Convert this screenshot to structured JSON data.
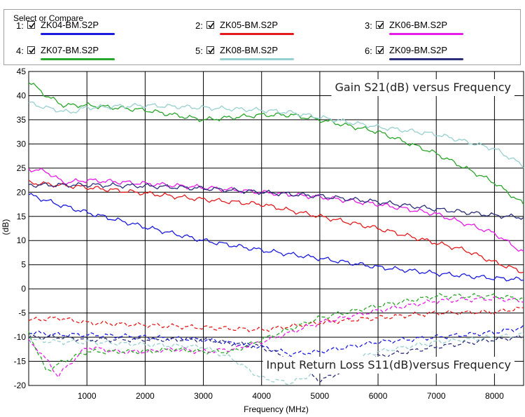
{
  "selector": {
    "legend": "Select or Compare",
    "items": [
      {
        "index": "1:",
        "checked": true,
        "name": "ZK04-BM.S2P",
        "color": "#1b1bdc"
      },
      {
        "index": "2:",
        "checked": true,
        "name": "ZK05-BM.S2P",
        "color": "#e31a1c"
      },
      {
        "index": "3:",
        "checked": true,
        "name": "ZK06-BM.S2P",
        "color": "#e61be6"
      },
      {
        "index": "4:",
        "checked": true,
        "name": "ZK07-BM.S2P",
        "color": "#2aa62a"
      },
      {
        "index": "5:",
        "checked": true,
        "name": "ZK08-BM.S2P",
        "color": "#98cfcf"
      },
      {
        "index": "6:",
        "checked": true,
        "name": "ZK09-BM.S2P",
        "color": "#2b2f7a"
      }
    ]
  },
  "chart_data": {
    "type": "line",
    "title": "Gain S21(dB) versus Frequency",
    "annotations": [
      "Gain S21(dB) versus Frequency",
      "Input Return Loss S11(dB)versus Frequency"
    ],
    "xlabel": "Frequency (MHz)",
    "ylabel": "(dB)",
    "xlim": [
      0,
      8500
    ],
    "ylim": [
      -20,
      45
    ],
    "xticks": [
      1000,
      2000,
      3000,
      4000,
      5000,
      6000,
      7000,
      8000
    ],
    "yticks": [
      -20,
      -15,
      -10,
      -5,
      0,
      5,
      10,
      15,
      20,
      25,
      30,
      35,
      40,
      45
    ],
    "grid": true,
    "series": [
      {
        "name": "ZK04-BM.S2P S21",
        "color": "#1b1bdc",
        "dash": false,
        "x": [
          0,
          500,
          1000,
          2000,
          3000,
          4000,
          5000,
          6000,
          7000,
          8000,
          8500
        ],
        "y": [
          19.5,
          17.5,
          15.8,
          12.8,
          10.0,
          8.0,
          6.3,
          4.5,
          3.2,
          2.2,
          1.9
        ]
      },
      {
        "name": "ZK05-BM.S2P S21",
        "color": "#e31a1c",
        "dash": false,
        "x": [
          0,
          500,
          1000,
          2000,
          3000,
          4000,
          4500,
          5000,
          6000,
          7000,
          7500,
          8000,
          8500
        ],
        "y": [
          22.0,
          21.5,
          21.0,
          19.8,
          18.5,
          17.5,
          16.2,
          15.0,
          12.5,
          9.5,
          8.0,
          5.5,
          3.5
        ]
      },
      {
        "name": "ZK06-BM.S2P S21",
        "color": "#e61be6",
        "dash": false,
        "x": [
          0,
          300,
          600,
          1000,
          2000,
          3000,
          4000,
          5000,
          6000,
          7000,
          8000,
          8500
        ],
        "y": [
          24.8,
          24.3,
          22.0,
          22.5,
          21.8,
          21.0,
          20.0,
          19.0,
          17.5,
          15.5,
          11.5,
          7.5
        ]
      },
      {
        "name": "ZK07-BM.S2P S21",
        "color": "#2aa62a",
        "dash": false,
        "x": [
          0,
          300,
          600,
          1000,
          2000,
          3000,
          3500,
          4000,
          4500,
          5000,
          6000,
          7000,
          7500,
          8000,
          8500
        ],
        "y": [
          43.0,
          40.0,
          38.0,
          38.0,
          37.0,
          35.0,
          35.5,
          36.0,
          36.0,
          35.0,
          32.5,
          28.0,
          25.0,
          22.0,
          17.5
        ]
      },
      {
        "name": "ZK08-BM.S2P S21",
        "color": "#98cfcf",
        "dash": false,
        "x": [
          0,
          300,
          700,
          1000,
          2000,
          3000,
          4000,
          4500,
          5000,
          6000,
          7000,
          8000,
          8500
        ],
        "y": [
          38.5,
          37.5,
          36.5,
          37.5,
          38.0,
          37.5,
          37.0,
          36.5,
          35.5,
          33.5,
          32.0,
          29.0,
          25.5
        ]
      },
      {
        "name": "ZK09-BM.S2P S21",
        "color": "#2b2f7a",
        "dash": false,
        "x": [
          0,
          500,
          1000,
          2000,
          3000,
          4000,
          5000,
          6000,
          7000,
          8000,
          8500
        ],
        "y": [
          21.5,
          21.5,
          21.5,
          21.3,
          20.8,
          20.0,
          19.2,
          18.0,
          16.5,
          15.2,
          14.8
        ]
      },
      {
        "name": "ZK04-BM.S2P S11",
        "color": "#1b1bdc",
        "dash": true,
        "x": [
          0,
          500,
          1000,
          2000,
          3000,
          4000,
          4500,
          5000,
          6000,
          7000,
          8000,
          8500
        ],
        "y": [
          -9.0,
          -9.5,
          -9.5,
          -10.0,
          -10.5,
          -12.0,
          -13.5,
          -13.0,
          -11.0,
          -10.0,
          -9.0,
          -8.0
        ]
      },
      {
        "name": "ZK05-BM.S2P S11",
        "color": "#e31a1c",
        "dash": true,
        "x": [
          0,
          500,
          1000,
          2000,
          3000,
          4000,
          5000,
          6000,
          7000,
          8000,
          8500
        ],
        "y": [
          -6.5,
          -6.0,
          -7.0,
          -7.5,
          -8.0,
          -8.5,
          -7.0,
          -6.0,
          -5.0,
          -4.8,
          -4.0
        ]
      },
      {
        "name": "ZK06-BM.S2P S11",
        "color": "#e61be6",
        "dash": true,
        "x": [
          0,
          200,
          500,
          1000,
          1500,
          2000,
          2500,
          3000,
          3500,
          4000,
          5000,
          6000,
          7000,
          8000,
          8500
        ],
        "y": [
          -11.0,
          -13.0,
          -18.0,
          -12.0,
          -13.0,
          -13.0,
          -12.5,
          -13.0,
          -12.5,
          -11.0,
          -7.0,
          -4.5,
          -2.5,
          -2.0,
          -2.5
        ]
      },
      {
        "name": "ZK07-BM.S2P S11",
        "color": "#2aa62a",
        "dash": true,
        "x": [
          0,
          300,
          600,
          1000,
          2000,
          2500,
          3000,
          3500,
          4000,
          5000,
          6000,
          7000,
          8000,
          8500
        ],
        "y": [
          -9.0,
          -17.0,
          -15.0,
          -13.0,
          -13.0,
          -12.5,
          -13.0,
          -13.0,
          -10.5,
          -6.0,
          -3.5,
          -1.5,
          -1.5,
          -2.0
        ]
      },
      {
        "name": "ZK08-BM.S2P S11",
        "color": "#98cfcf",
        "dash": true,
        "x": [
          0,
          500,
          1000,
          2000,
          3000,
          3500,
          4000,
          4500,
          5000,
          6000,
          7000,
          8000,
          8500
        ],
        "y": [
          -10.5,
          -11.0,
          -11.0,
          -11.5,
          -12.0,
          -14.5,
          -18.5,
          -19.5,
          -17.0,
          -13.0,
          -11.0,
          -10.0,
          -9.5
        ]
      },
      {
        "name": "ZK09-BM.S2P S11",
        "color": "#2b2f7a",
        "dash": true,
        "x": [
          0,
          500,
          1000,
          2000,
          3000,
          4000,
          4500,
          5000,
          6000,
          7000,
          8000,
          8500
        ],
        "y": [
          -10.0,
          -10.0,
          -10.5,
          -10.5,
          -10.5,
          -12.0,
          -14.5,
          -19.0,
          -14.0,
          -12.0,
          -10.5,
          -10.0
        ]
      }
    ]
  }
}
